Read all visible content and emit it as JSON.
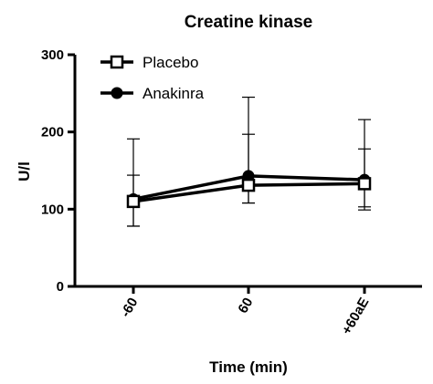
{
  "chart_data": {
    "type": "line",
    "title": "Creatine kinase",
    "xlabel": "Time (min)",
    "ylabel": "U/l",
    "categories": [
      "-60",
      "60",
      "+60aE"
    ],
    "ylim": [
      0,
      300
    ],
    "yticks": [
      0,
      100,
      200,
      300
    ],
    "grid": false,
    "legend_position": "top-left",
    "series": [
      {
        "name": "Placebo",
        "marker": "open-square",
        "color": "#000000",
        "values": [
          110,
          131,
          133
        ],
        "error_upper": [
          144,
          197,
          178
        ],
        "error_lower": [
          78,
          108,
          103
        ]
      },
      {
        "name": "Anakinra",
        "marker": "filled-circle",
        "color": "#000000",
        "values": [
          113,
          143,
          138
        ],
        "error_upper": [
          191,
          245,
          216
        ],
        "error_lower": [
          78,
          108,
          99
        ]
      }
    ]
  }
}
